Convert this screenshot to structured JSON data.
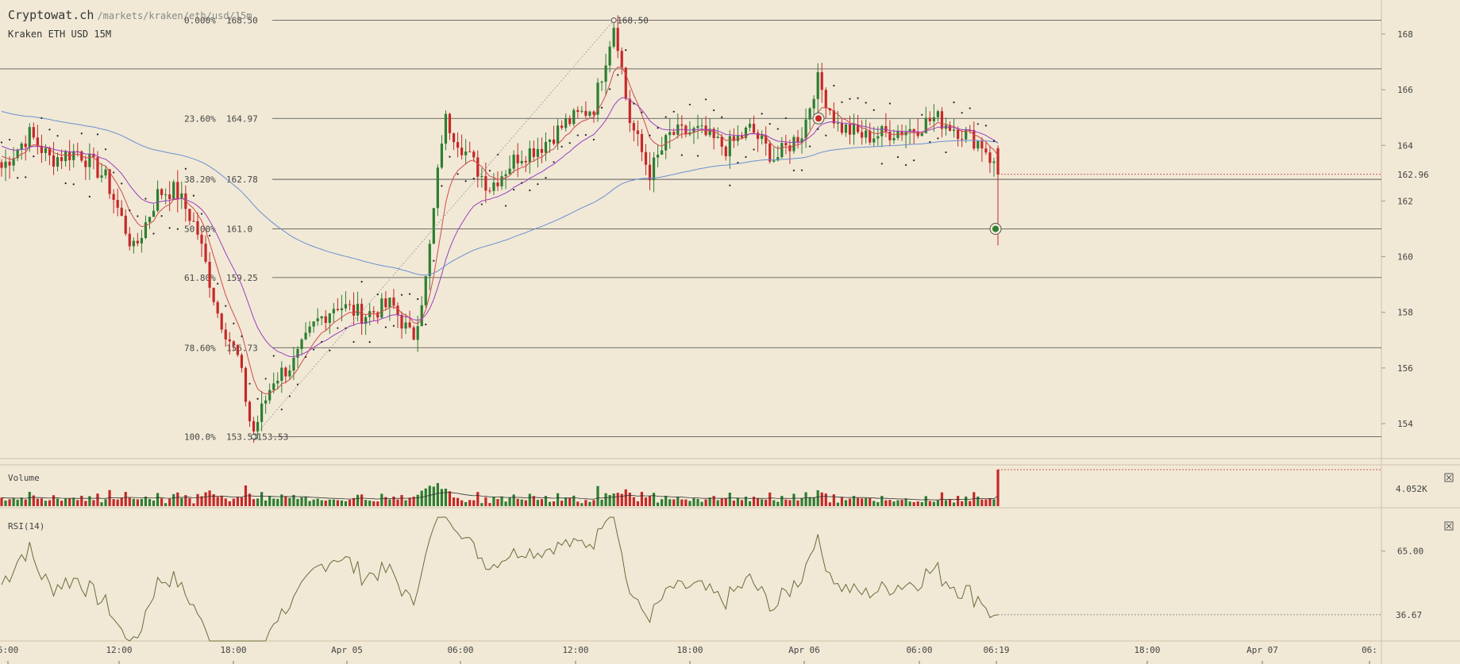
{
  "header": {
    "brand": "Cryptowat.ch",
    "path": "/markets/kraken/eth/usd/15m",
    "market": "Kraken ETH USD 15M"
  },
  "colors": {
    "background": "#f1e9d6",
    "up": "#2e7d32",
    "down": "#c62828",
    "ema_short": "#d24a4a",
    "ema_mid": "#9b3fbf",
    "ema_long": "#6a8fcf",
    "rsi_line": "#6b6b3a"
  },
  "chart_data": [
    {
      "type": "candlestick",
      "x_ticks": [
        "6:00",
        "12:00",
        "18:00",
        "Apr 05",
        "06:00",
        "12:00",
        "18:00",
        "Apr 06",
        "06:00",
        "06:19",
        "18:00",
        "Apr 07",
        "06:"
      ],
      "y_ticks": [
        168,
        166,
        164,
        162,
        160,
        158,
        156,
        154
      ],
      "ylim": [
        153.0,
        168.5
      ],
      "last_price": "162.96",
      "fibonacci": [
        {
          "pct": "0.000%",
          "price": "168.50"
        },
        {
          "pct": "23.60%",
          "price": "164.97"
        },
        {
          "pct": "38.20%",
          "price": "162.78"
        },
        {
          "pct": "50.00%",
          "price": "161.0"
        },
        {
          "pct": "61.80%",
          "price": "159.25"
        },
        {
          "pct": "78.60%",
          "price": "156.73"
        },
        {
          "pct": "100.0%",
          "price": "153.53"
        }
      ],
      "swing_high": "168.50",
      "swing_low": "153.53",
      "series": [
        {
          "indicator": "ema_short"
        },
        {
          "indicator": "ema_mid"
        },
        {
          "indicator": "ema_long"
        },
        {
          "indicator": "parabolic_sar"
        }
      ]
    },
    {
      "type": "bar",
      "title": "Volume",
      "last_value": "4.052K"
    },
    {
      "type": "line",
      "title": "RSI(14)",
      "y_ticks": [
        "65.00"
      ],
      "last_value": "36.67",
      "ylim": [
        25,
        80
      ]
    }
  ]
}
